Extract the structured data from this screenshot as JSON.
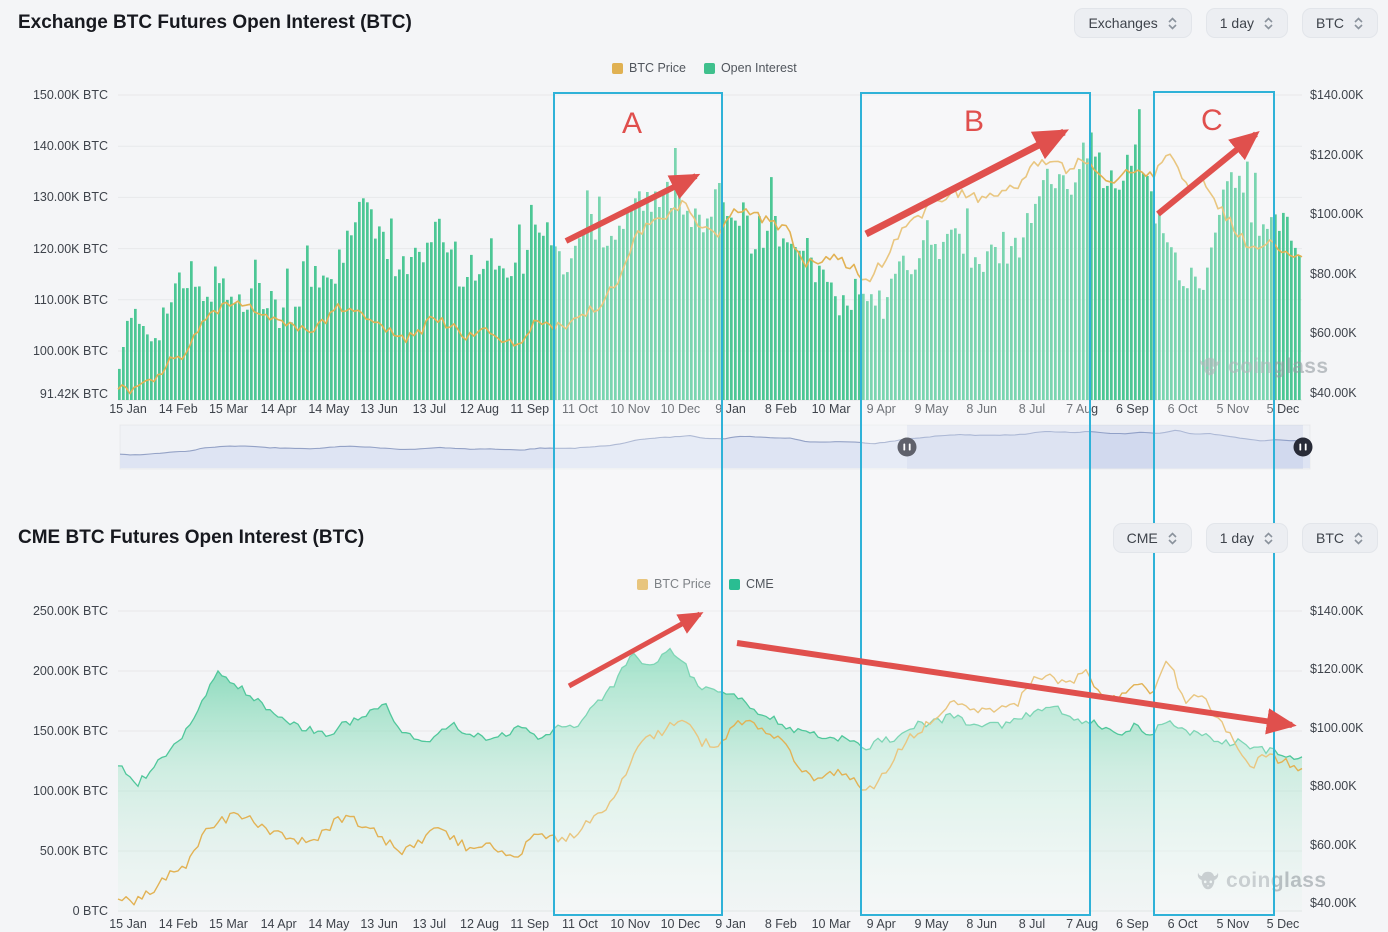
{
  "branding": {
    "watermark": "coinglass"
  },
  "charts": [
    {
      "title": "Exchange BTC Futures Open Interest (BTC)",
      "controls": [
        {
          "label": "Exchanges"
        },
        {
          "label": "1 day"
        },
        {
          "label": "BTC"
        }
      ],
      "legend": [
        {
          "label": "BTC Price",
          "color": "#e0b152"
        },
        {
          "label": "Open Interest",
          "color": "#3fc08d"
        }
      ]
    },
    {
      "title": "CME BTC Futures Open Interest (BTC)",
      "controls": [
        {
          "label": "CME"
        },
        {
          "label": "1 day"
        },
        {
          "label": "BTC"
        }
      ],
      "legend": [
        {
          "label": "BTC Price",
          "color": "#e0b152"
        },
        {
          "label": "CME",
          "color": "#2abd92"
        }
      ]
    }
  ],
  "chart_data": [
    {
      "type": "bar",
      "title": "Exchange BTC Futures Open Interest (BTC)",
      "x_tick_labels": [
        "15 Jan",
        "14 Feb",
        "15 Mar",
        "14 Apr",
        "14 May",
        "13 Jun",
        "13 Jul",
        "12 Aug",
        "11 Sep",
        "11 Oct",
        "10 Nov",
        "10 Dec",
        "9 Jan",
        "8 Feb",
        "10 Mar",
        "9 Apr",
        "9 May",
        "8 Jun",
        "8 Jul",
        "7 Aug",
        "6 Sep",
        "6 Oct",
        "5 Nov",
        "5 Dec"
      ],
      "left_axis_ticks": [
        "150.00K BTC",
        "140.00K BTC",
        "130.00K BTC",
        "120.00K BTC",
        "110.00K BTC",
        "100.00K BTC",
        "91.42K BTC"
      ],
      "right_axis_ticks": [
        "$140.00K",
        "$120.00K",
        "$100.00K",
        "$80.00K",
        "$60.00K",
        "$40.00K"
      ],
      "left_range_k_btc": [
        91.42,
        150
      ],
      "right_range_usd_k": [
        40,
        140
      ],
      "sample_start": "15 Jan",
      "sample_interval_days": 10,
      "series": [
        {
          "name": "Open Interest",
          "unit": "K BTC",
          "axis": "left",
          "style": "bars",
          "color": "#4cc795",
          "values": [
            100,
            104,
            106,
            108,
            112,
            113,
            112,
            110,
            112,
            109,
            107,
            110,
            113,
            118,
            122,
            128,
            121,
            115,
            118,
            124,
            118,
            112,
            119,
            116,
            118,
            122,
            121,
            118,
            123,
            124,
            125,
            128,
            130,
            131,
            128,
            126,
            128,
            127,
            124,
            122,
            123,
            118,
            114,
            112,
            110,
            108,
            111,
            114,
            118,
            122,
            121,
            119,
            117,
            118,
            122,
            129,
            132,
            134,
            140,
            136,
            133,
            136,
            134,
            122,
            112,
            116,
            121,
            135,
            128,
            122,
            124,
            123
          ]
        },
        {
          "name": "BTC Price",
          "unit": "K USD",
          "axis": "right",
          "style": "line",
          "color": "#e2b254",
          "values": [
            42,
            40,
            44,
            50,
            52,
            63,
            68,
            70,
            69,
            64,
            63,
            61,
            62,
            68,
            69,
            66,
            61,
            58,
            60,
            66,
            62,
            59,
            61,
            58,
            57,
            63,
            62,
            62,
            67,
            70,
            78,
            92,
            97,
            100,
            104,
            95,
            94,
            102,
            101,
            97,
            96,
            84,
            83,
            85,
            82,
            78,
            85,
            94,
            99,
            104,
            108,
            106,
            105,
            107,
            109,
            118,
            117,
            115,
            119,
            112,
            111,
            116,
            112,
            123,
            109,
            111,
            103,
            95,
            87,
            91,
            88,
            86
          ]
        }
      ],
      "grid": true,
      "legend_position": "top-center"
    },
    {
      "type": "area",
      "title": "CME BTC Futures Open Interest (BTC)",
      "x_tick_labels": [
        "15 Jan",
        "14 Feb",
        "15 Mar",
        "14 Apr",
        "14 May",
        "13 Jun",
        "13 Jul",
        "12 Aug",
        "11 Sep",
        "11 Oct",
        "10 Nov",
        "10 Dec",
        "9 Jan",
        "8 Feb",
        "10 Mar",
        "9 Apr",
        "9 May",
        "8 Jun",
        "8 Jul",
        "7 Aug",
        "6 Sep",
        "6 Oct",
        "5 Nov",
        "5 Dec"
      ],
      "left_axis_ticks": [
        "250.00K BTC",
        "200.00K BTC",
        "150.00K BTC",
        "100.00K BTC",
        "50.00K BTC",
        "0 BTC"
      ],
      "right_axis_ticks": [
        "$140.00K",
        "$120.00K",
        "$100.00K",
        "$80.00K",
        "$60.00K",
        "$40.00K"
      ],
      "left_range_k_btc": [
        0,
        250
      ],
      "right_range_usd_k": [
        40,
        140
      ],
      "sample_start": "15 Jan",
      "sample_interval_days": 10,
      "series": [
        {
          "name": "CME",
          "unit": "K BTC",
          "axis": "left",
          "style": "area",
          "color": "#50c79b",
          "values": [
            122,
            104,
            120,
            132,
            150,
            172,
            202,
            188,
            180,
            168,
            160,
            152,
            148,
            150,
            158,
            166,
            172,
            150,
            140,
            146,
            154,
            148,
            143,
            148,
            151,
            146,
            150,
            154,
            160,
            176,
            196,
            214,
            203,
            216,
            206,
            182,
            186,
            178,
            168,
            160,
            155,
            150,
            146,
            143,
            140,
            138,
            142,
            147,
            154,
            159,
            162,
            157,
            152,
            155,
            160,
            166,
            170,
            163,
            158,
            152,
            148,
            153,
            150,
            157,
            150,
            146,
            143,
            140,
            137,
            134,
            130,
            127
          ]
        },
        {
          "name": "BTC Price",
          "unit": "K USD",
          "axis": "right",
          "style": "line",
          "color": "#e2b254",
          "values": [
            42,
            40,
            44,
            50,
            52,
            63,
            68,
            70,
            69,
            64,
            63,
            61,
            62,
            68,
            69,
            66,
            61,
            58,
            60,
            66,
            62,
            59,
            61,
            58,
            57,
            63,
            62,
            62,
            67,
            70,
            78,
            92,
            97,
            100,
            104,
            95,
            94,
            102,
            101,
            97,
            96,
            84,
            83,
            85,
            82,
            78,
            85,
            94,
            99,
            104,
            108,
            106,
            105,
            107,
            109,
            118,
            117,
            115,
            119,
            112,
            111,
            116,
            112,
            123,
            109,
            111,
            103,
            95,
            87,
            91,
            88,
            86
          ]
        }
      ],
      "grid": true,
      "legend_position": "top-center"
    }
  ],
  "navigator": {
    "description": "BTC price overview strip with two range handles",
    "handle_count": 2
  },
  "annotations": {
    "boxes": [
      {
        "label": "A"
      },
      {
        "label": "B"
      },
      {
        "label": "C"
      }
    ],
    "box_color": "#2fb2d8",
    "arrow_color": "#e0504d"
  }
}
